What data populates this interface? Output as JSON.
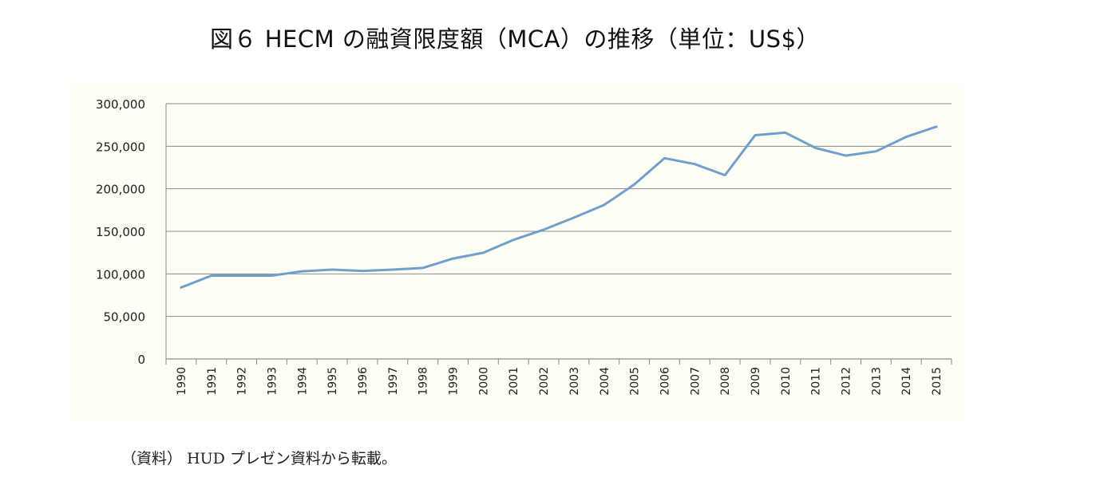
{
  "title": "図６ HECM の融資限度額（MCA）の推移（単位：US$）",
  "source": "（資料） HUD プレゼン資料から転載。",
  "chart_data": {
    "type": "line",
    "title": "",
    "xlabel": "",
    "ylabel": "",
    "ylim": [
      0,
      300000
    ],
    "yticks": [
      "0",
      "50,000",
      "100,000",
      "150,000",
      "200,000",
      "250,000",
      "300,000"
    ],
    "grid": true,
    "legend": "none",
    "categories": [
      "1990",
      "1991",
      "1992",
      "1993",
      "1994",
      "1995",
      "1996",
      "1997",
      "1998",
      "1999",
      "2000",
      "2001",
      "2002",
      "2003",
      "2004",
      "2005",
      "2006",
      "2007",
      "2008",
      "2009",
      "2010",
      "2011",
      "2012",
      "2013",
      "2014",
      "2015"
    ],
    "series": [
      {
        "color": "#6f9fcf",
        "values": [
          84000,
          98000,
          98000,
          98000,
          103000,
          105000,
          103500,
          105000,
          107000,
          118000,
          124800,
          140000,
          152000,
          166000,
          181000,
          205000,
          236000,
          229000,
          216000,
          263000,
          266000,
          248000,
          239000,
          244000,
          261000,
          273000
        ]
      }
    ]
  }
}
